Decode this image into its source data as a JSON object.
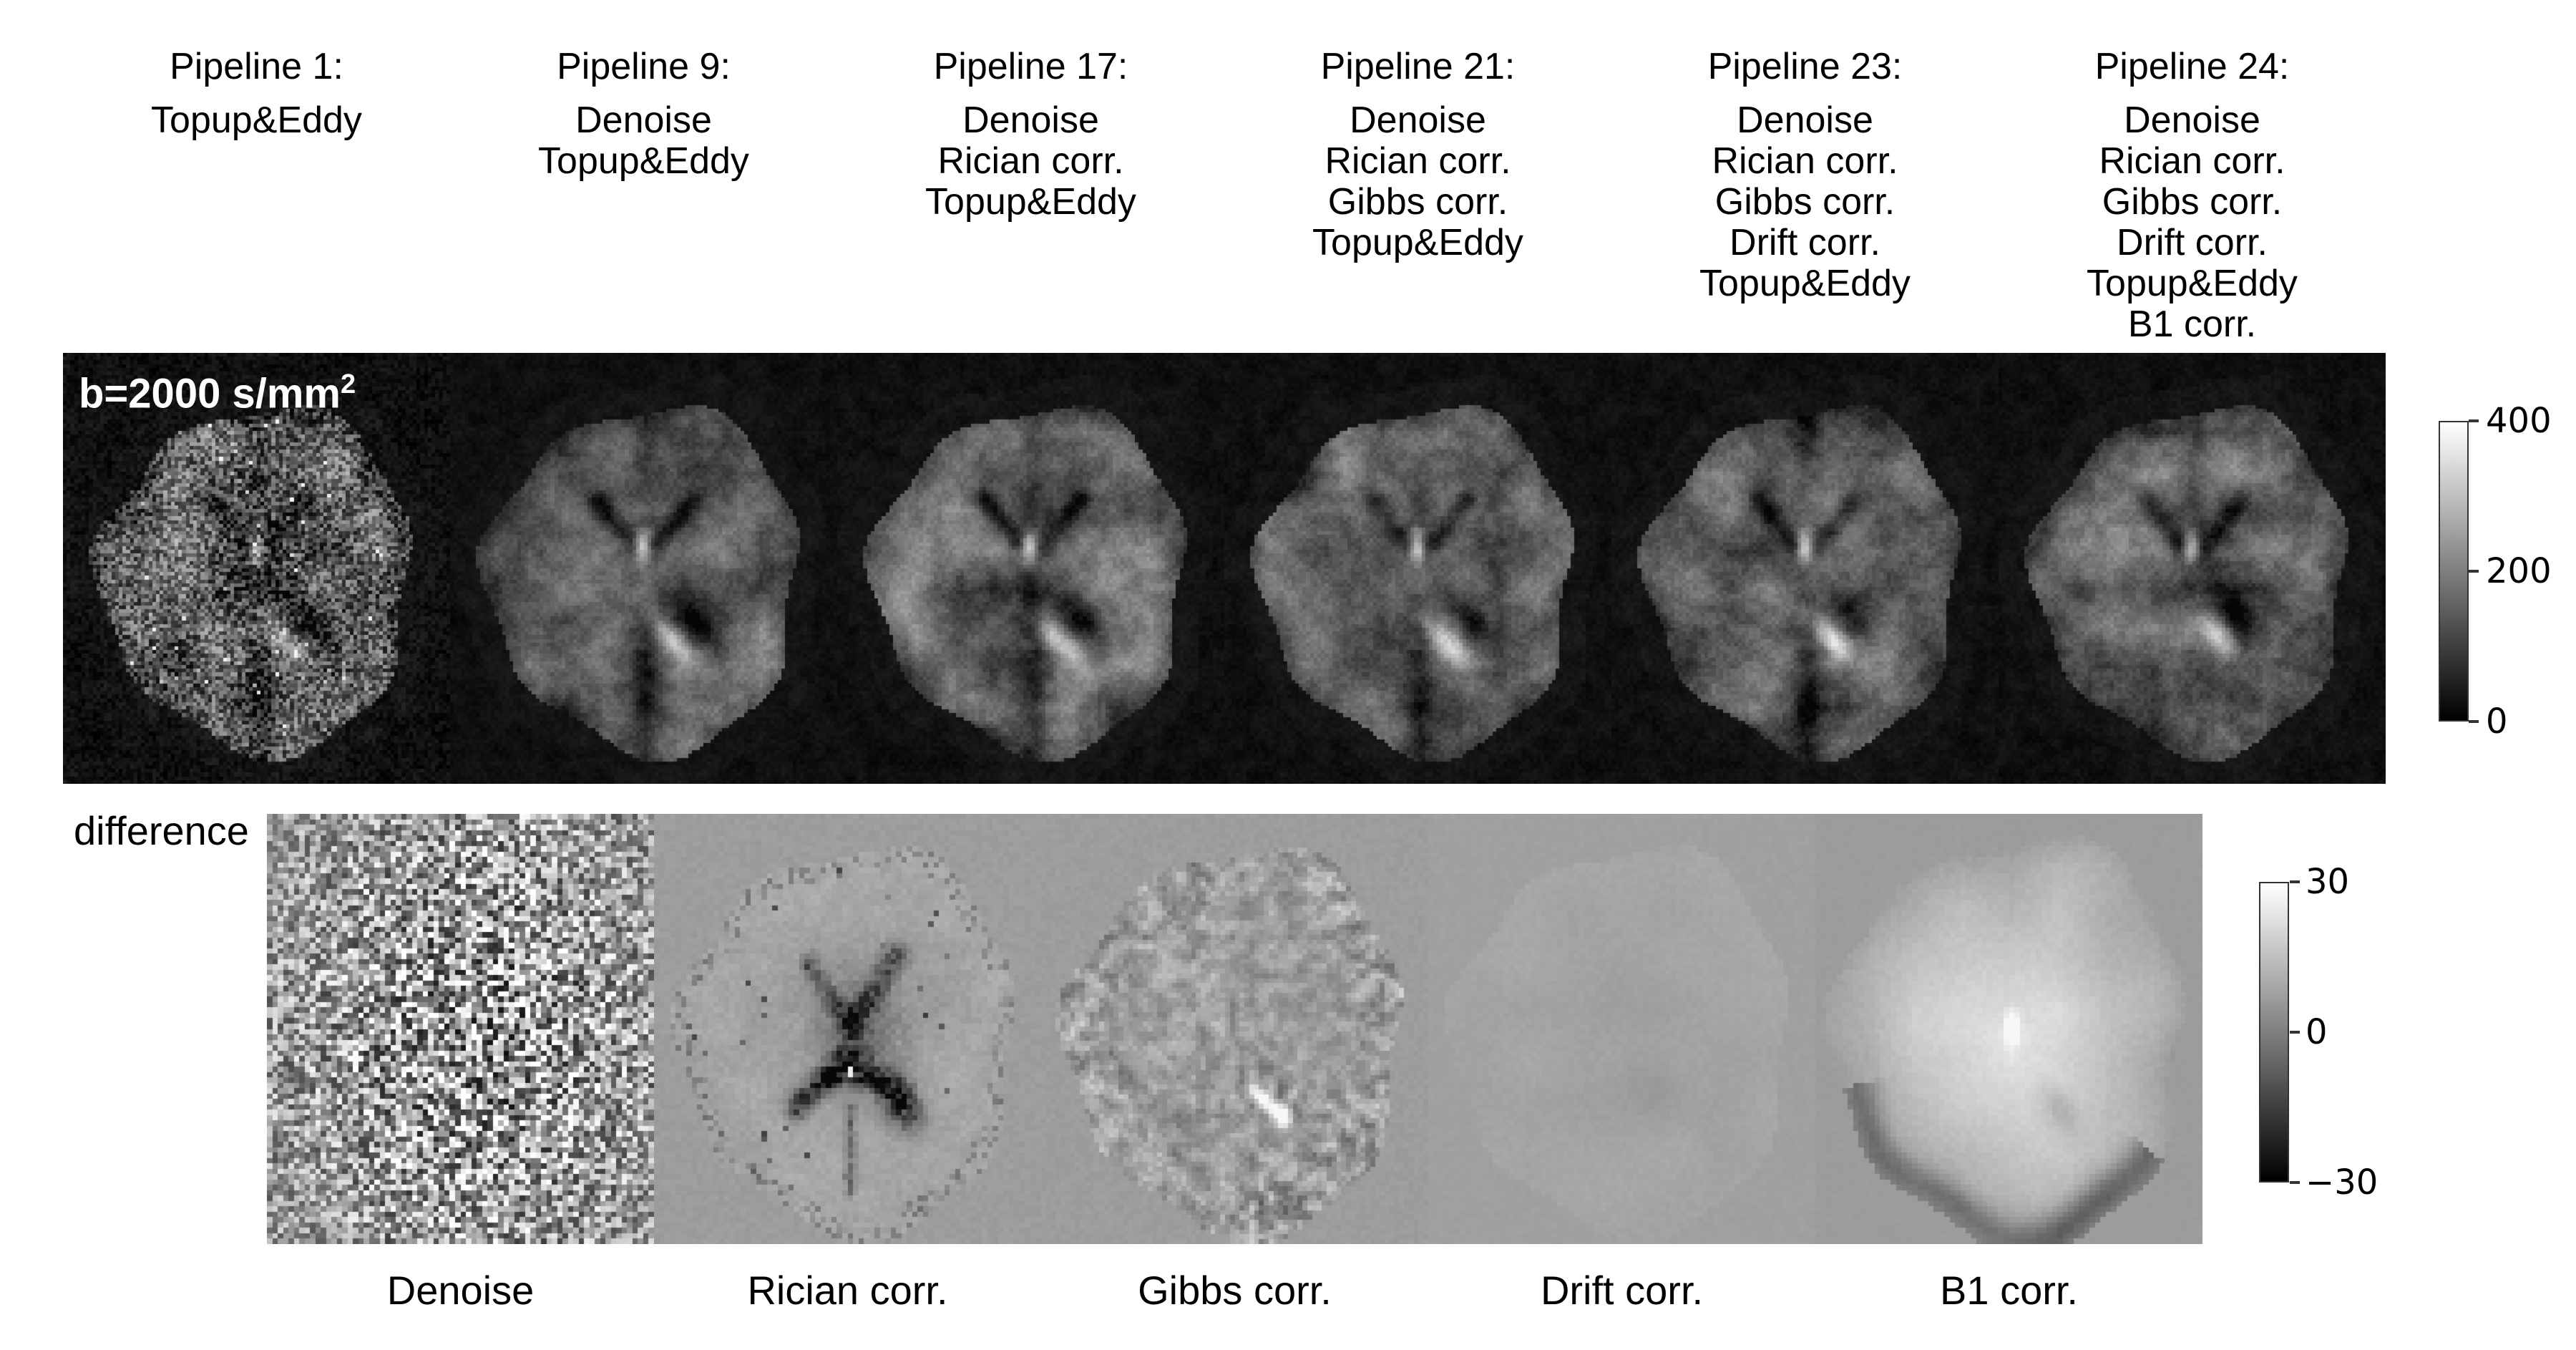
{
  "header": {
    "pipelines": [
      {
        "title": "Pipeline 1:",
        "steps": [
          "Topup&Eddy"
        ]
      },
      {
        "title": "Pipeline 9:",
        "steps": [
          "Denoise",
          "Topup&Eddy"
        ]
      },
      {
        "title": "Pipeline 17:",
        "steps": [
          "Denoise",
          "Rician corr.",
          "Topup&Eddy"
        ]
      },
      {
        "title": "Pipeline 21:",
        "steps": [
          "Denoise",
          "Rician corr.",
          "Gibbs corr.",
          "Topup&Eddy"
        ]
      },
      {
        "title": "Pipeline 23:",
        "steps": [
          "Denoise",
          "Rician corr.",
          "Gibbs corr.",
          "Drift corr.",
          "Topup&Eddy"
        ]
      },
      {
        "title": "Pipeline 24:",
        "steps": [
          "Denoise",
          "Rician corr.",
          "Gibbs corr.",
          "Drift corr.",
          "Topup&Eddy",
          "B1 corr."
        ]
      }
    ]
  },
  "row1": {
    "annotation": {
      "base": "b=2000 s/mm",
      "sup": "2"
    },
    "colorbar": {
      "tick_labels": [
        "400",
        "200",
        "0"
      ],
      "max": 400,
      "mid": 200,
      "min": 0,
      "gradient_top": "#ffffff",
      "gradient_bottom": "#000000"
    }
  },
  "row2": {
    "label": "difference",
    "panel_labels": [
      "Denoise",
      "Rician corr.",
      "Gibbs corr.",
      "Drift corr.",
      "B1 corr."
    ],
    "colorbar": {
      "tick_labels": [
        "30",
        "0",
        "−30"
      ],
      "max": 30,
      "mid": 0,
      "min": -30,
      "gradient_top": "#ffffff",
      "gradient_bottom": "#000000"
    }
  },
  "colors": {
    "page_background": "#ffffff",
    "row1_background": "#000000",
    "row2_background": "#9c9c9c",
    "text": "#000000",
    "annotation_text": "#ffffff"
  }
}
